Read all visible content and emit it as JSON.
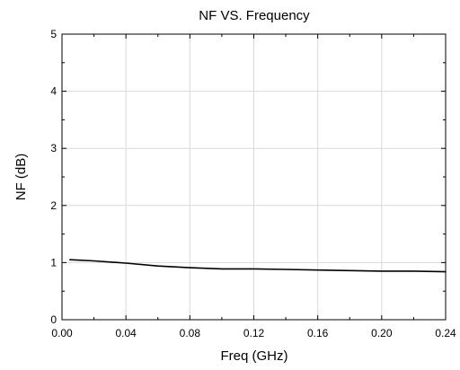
{
  "chart_data": {
    "type": "line",
    "title": "NF VS. Frequency",
    "xlabel": "Freq (GHz)",
    "ylabel": "NF (dB)",
    "xlim": [
      0,
      0.24
    ],
    "ylim": [
      0,
      5
    ],
    "x_ticks": [
      "0.00",
      "0.04",
      "0.08",
      "0.12",
      "0.16",
      "0.20",
      "0.24"
    ],
    "y_ticks": [
      "0",
      "1",
      "2",
      "3",
      "4",
      "5"
    ],
    "grid": true,
    "line_color": "#000000",
    "grid_color": "#d9d9d9",
    "series": [
      {
        "x": [
          0.005,
          0.02,
          0.04,
          0.06,
          0.08,
          0.1,
          0.12,
          0.14,
          0.16,
          0.18,
          0.2,
          0.22,
          0.24
        ],
        "y": [
          1.05,
          1.03,
          0.99,
          0.94,
          0.91,
          0.89,
          0.89,
          0.88,
          0.87,
          0.86,
          0.85,
          0.85,
          0.84
        ]
      }
    ]
  }
}
